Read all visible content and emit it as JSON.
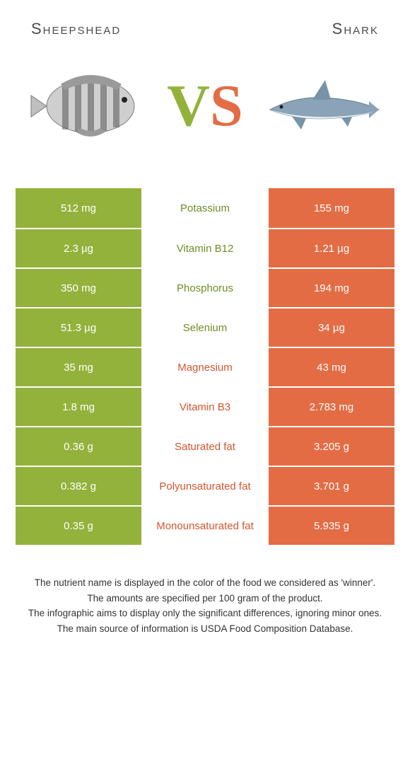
{
  "header": {
    "left": "Sheepshead",
    "right": "Shark"
  },
  "vs": {
    "v": "V",
    "s": "S"
  },
  "colors": {
    "green": "#93b23c",
    "orange": "#e46c44"
  },
  "table": {
    "rows": [
      {
        "left": "512 mg",
        "label": "Potassium",
        "right": "155 mg",
        "winner": "left"
      },
      {
        "left": "2.3 µg",
        "label": "Vitamin B12",
        "right": "1.21 µg",
        "winner": "left"
      },
      {
        "left": "350 mg",
        "label": "Phosphorus",
        "right": "194 mg",
        "winner": "left"
      },
      {
        "left": "51.3 µg",
        "label": "Selenium",
        "right": "34 µg",
        "winner": "left"
      },
      {
        "left": "35 mg",
        "label": "Magnesium",
        "right": "43 mg",
        "winner": "right"
      },
      {
        "left": "1.8 mg",
        "label": "Vitamin B3",
        "right": "2.783 mg",
        "winner": "right"
      },
      {
        "left": "0.36 g",
        "label": "Saturated fat",
        "right": "3.205 g",
        "winner": "right"
      },
      {
        "left": "0.382 g",
        "label": "Polyunsaturated fat",
        "right": "3.701 g",
        "winner": "right"
      },
      {
        "left": "0.35 g",
        "label": "Monounsaturated fat",
        "right": "5.935 g",
        "winner": "right"
      }
    ]
  },
  "footer": {
    "line1": "The nutrient name is displayed in the color of the food we considered as 'winner'.",
    "line2": "The amounts are specified per 100 gram of the product.",
    "line3": "The infographic aims to display only the significant differences, ignoring minor ones.",
    "line4": "The main source of information is USDA Food Composition Database."
  }
}
